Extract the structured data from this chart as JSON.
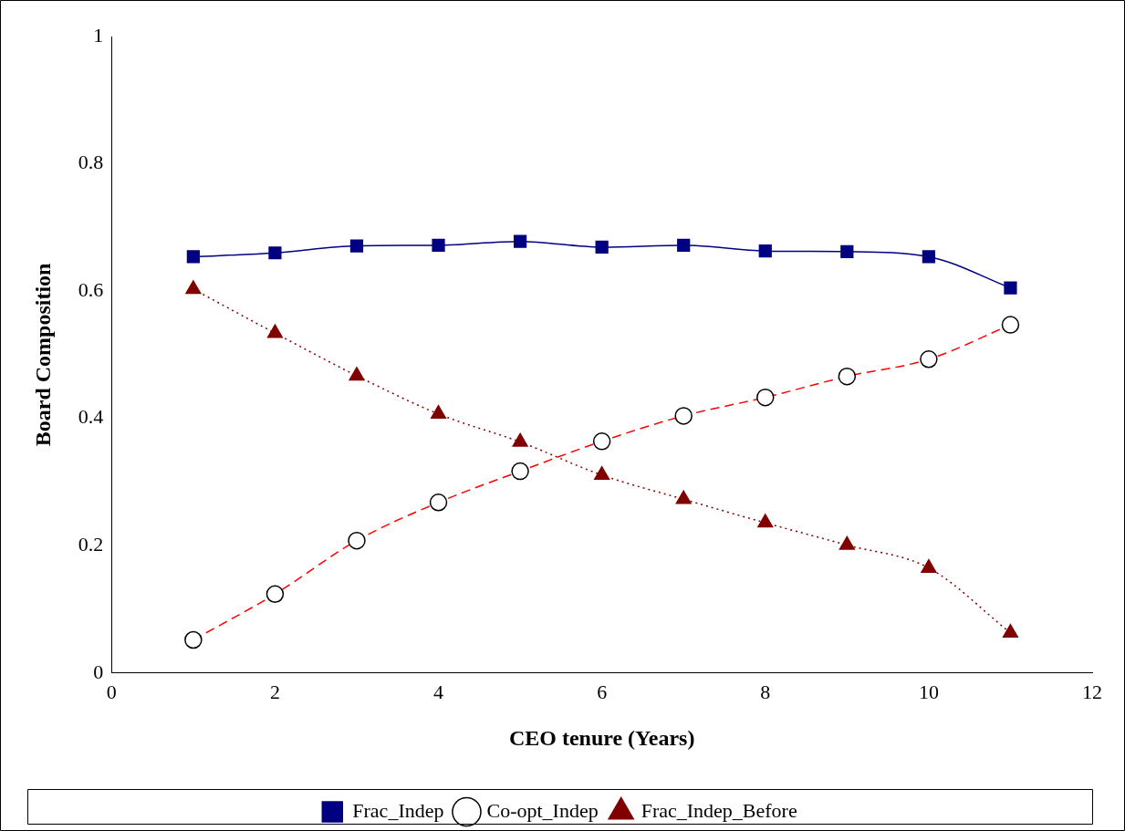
{
  "chart_data": {
    "type": "line",
    "xlabel": "CEO tenure (Years)",
    "ylabel": "Board Composition",
    "x": [
      1,
      2,
      3,
      4,
      5,
      6,
      7,
      8,
      9,
      10,
      11
    ],
    "xlim": [
      0,
      12
    ],
    "xticks": [
      0,
      2,
      4,
      6,
      8,
      10,
      12
    ],
    "ylim": [
      0,
      1
    ],
    "yticks": [
      0,
      0.2,
      0.4,
      0.6,
      0.8,
      1
    ],
    "grid": false,
    "legend": "bottom",
    "series": [
      {
        "name": "Frac_Indep",
        "color": "#000080",
        "marker": "square",
        "line_style": "solid",
        "values": [
          0.654,
          0.66,
          0.671,
          0.672,
          0.678,
          0.669,
          0.672,
          0.663,
          0.662,
          0.654,
          0.605
        ]
      },
      {
        "name": "Co-opt_Indep",
        "color": "#ff0000",
        "marker": "circle",
        "line_style": "dashed",
        "values": [
          0.052,
          0.124,
          0.208,
          0.268,
          0.317,
          0.364,
          0.404,
          0.433,
          0.466,
          0.493,
          0.547
        ]
      },
      {
        "name": "Frac_Indep_Before",
        "color": "#800000",
        "marker": "triangle",
        "line_style": "dotted",
        "values": [
          0.603,
          0.534,
          0.467,
          0.407,
          0.363,
          0.311,
          0.273,
          0.236,
          0.201,
          0.165,
          0.063
        ]
      }
    ]
  }
}
